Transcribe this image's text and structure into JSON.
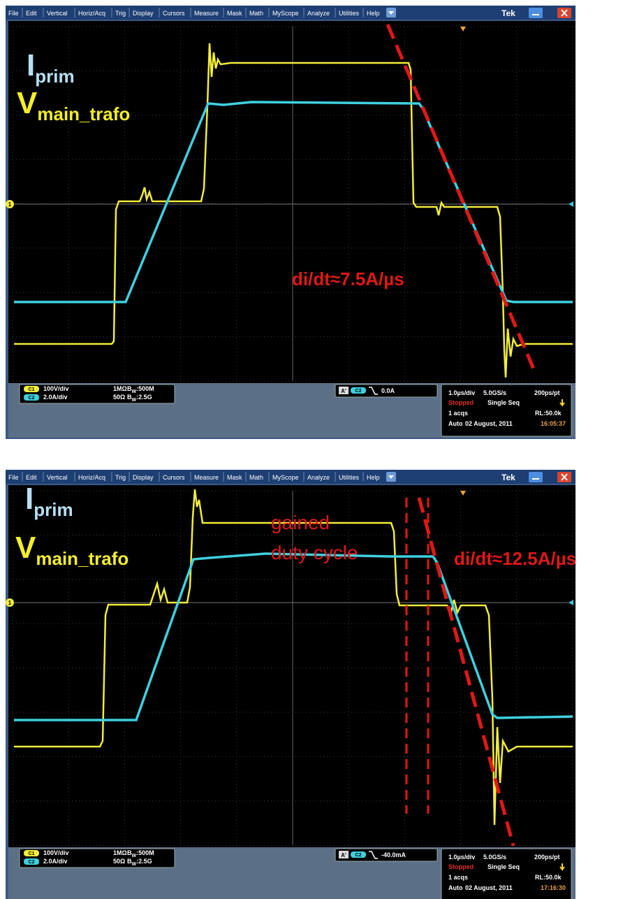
{
  "screens": [
    {
      "menu": [
        "File",
        "Edit",
        "Vertical",
        "Horiz/Acq",
        "Trig",
        "Display",
        "Cursors",
        "Measure",
        "Mask",
        "Math",
        "MyScope",
        "Analyze",
        "Utilities",
        "Help"
      ],
      "brand": "Tek",
      "ch1_marker": "1",
      "current_label": {
        "main": "I",
        "sub": "prim"
      },
      "voltage_label": {
        "main": "V",
        "sub": "main_trafo"
      },
      "annotations": [
        "di/dt≈7.5A/µs"
      ],
      "ch1": {
        "badge": "C1",
        "scale": "100V/div",
        "impedance": "1MΩ",
        "bw_b": "B",
        "bw_w": "W",
        "bw": ":500M"
      },
      "ch2": {
        "badge": "C2",
        "scale": "2.0A/div",
        "impedance": "50Ω",
        "bw_b": "B",
        "bw_w": "W",
        "bw": ":2.5G"
      },
      "trigger": {
        "badge": "A'",
        "source": "C2",
        "level": "0.0A"
      },
      "timebase": {
        "scale": "1.0µs/div",
        "rate": "5.0GS/s",
        "resolution": "200ps/pt",
        "state": "Stopped",
        "mode": "Single Seq",
        "acqs": "1 acqs",
        "record": "RL:50.0k",
        "trigger_mode": "Auto",
        "date": "02 August, 2011",
        "time": "16:05:37"
      }
    },
    {
      "menu": [
        "File",
        "Edit",
        "Vertical",
        "Horiz/Acq",
        "Trig",
        "Display",
        "Cursors",
        "Measure",
        "Mask",
        "Math",
        "MyScope",
        "Analyze",
        "Utilities",
        "Help"
      ],
      "brand": "Tek",
      "ch1_marker": "1",
      "current_label": {
        "main": "I",
        "sub": "prim"
      },
      "voltage_label": {
        "main": "V",
        "sub": "main_trafo"
      },
      "annotations": [
        "di/dt≈12.5A/µs",
        "gained",
        "duty cycle"
      ],
      "ch1": {
        "badge": "C1",
        "scale": "100V/div",
        "impedance": "1MΩ",
        "bw_b": "B",
        "bw_w": "W",
        "bw": ":500M"
      },
      "ch2": {
        "badge": "C2",
        "scale": "2.0A/div",
        "impedance": "50Ω",
        "bw_b": "B",
        "bw_w": "W",
        "bw": ":2.5G"
      },
      "trigger": {
        "badge": "A'",
        "source": "C2",
        "level": "-40.0mA"
      },
      "timebase": {
        "scale": "1.0µs/div",
        "rate": "5.0GS/s",
        "resolution": "200ps/pt",
        "state": "Stopped",
        "mode": "Single Seq",
        "acqs": "1 acqs",
        "record": "RL:50.0k",
        "trigger_mode": "Auto",
        "date": "02 August, 2011",
        "time": "17:16:30"
      }
    }
  ]
}
